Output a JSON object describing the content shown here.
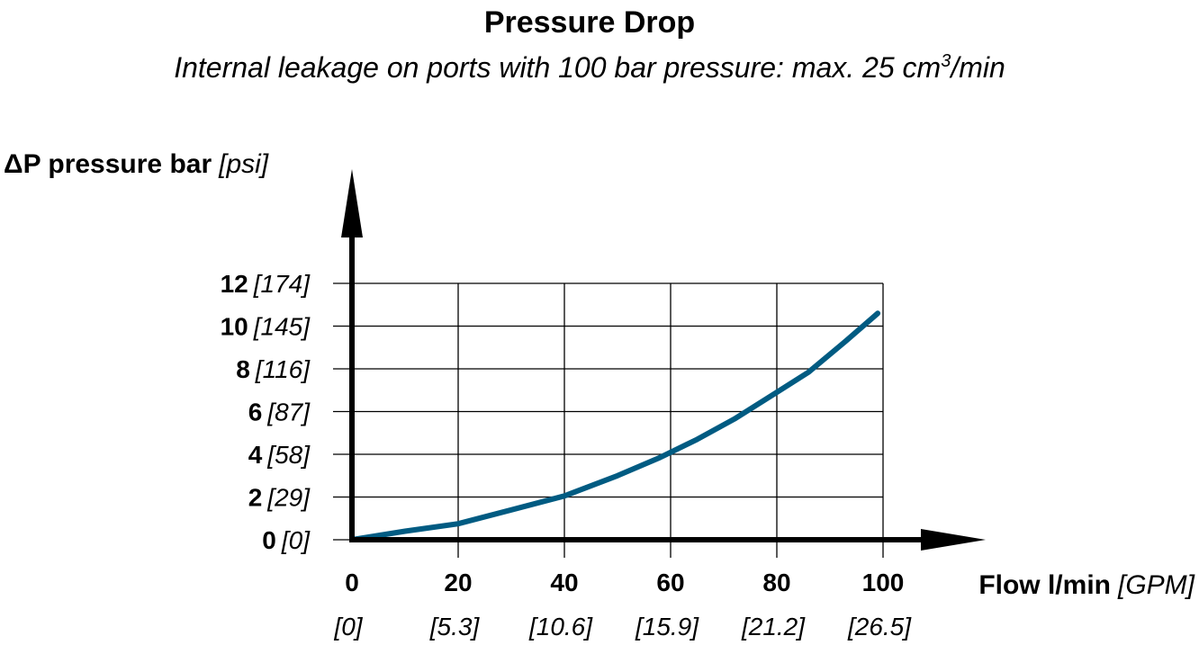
{
  "chart_data": {
    "type": "line",
    "title": "Pressure Drop",
    "subtitle_main": "Internal leakage on ports with 100 bar pressure: max. 25 cm",
    "subtitle_sup": "3",
    "subtitle_tail": "/min",
    "ylabel_main": "ΔP pressure bar",
    "ylabel_unit": "[psi]",
    "xlabel_main": "Flow l/min",
    "xlabel_unit": "[GPM]",
    "xlim": [
      0,
      100
    ],
    "ylim": [
      0,
      12
    ],
    "grid": true,
    "x_ticks": [
      {
        "value": 0,
        "label": "0",
        "alt": "[0]"
      },
      {
        "value": 20,
        "label": "20",
        "alt": "[5.3]"
      },
      {
        "value": 40,
        "label": "40",
        "alt": "[10.6]"
      },
      {
        "value": 60,
        "label": "60",
        "alt": "[15.9]"
      },
      {
        "value": 80,
        "label": "80",
        "alt": "[21.2]"
      },
      {
        "value": 100,
        "label": "100",
        "alt": "[26.5]"
      }
    ],
    "y_ticks": [
      {
        "value": 0,
        "label": "0",
        "alt": "[0]"
      },
      {
        "value": 2,
        "label": "2",
        "alt": "[29]"
      },
      {
        "value": 4,
        "label": "4",
        "alt": "[58]"
      },
      {
        "value": 6,
        "label": "6",
        "alt": "[87]"
      },
      {
        "value": 8,
        "label": "8",
        "alt": "[116]"
      },
      {
        "value": 10,
        "label": "10",
        "alt": "[145]"
      },
      {
        "value": 12,
        "label": "12",
        "alt": "[174]"
      }
    ],
    "series": [
      {
        "color": "#005b82",
        "x": [
          0,
          10,
          20,
          30,
          40,
          50,
          58,
          65,
          72,
          80,
          86,
          93,
          99
        ],
        "y": [
          0,
          0.4,
          0.75,
          1.4,
          2.05,
          3.0,
          3.85,
          4.7,
          5.65,
          6.9,
          7.85,
          9.3,
          10.6
        ]
      }
    ]
  }
}
